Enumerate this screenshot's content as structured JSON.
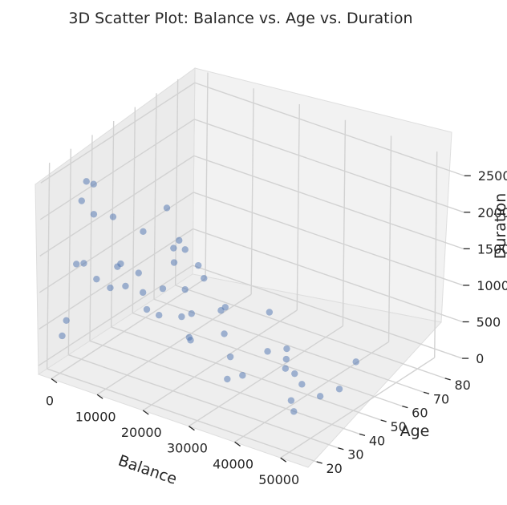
{
  "chart_data": {
    "type": "scatter",
    "projection": "3d",
    "title": "3D Scatter Plot: Balance vs. Age vs. Duration",
    "xlabel": "Balance",
    "ylabel": "Age",
    "zlabel": "Duration",
    "x_ticks": [
      "0",
      "10000",
      "20000",
      "30000",
      "40000",
      "50000"
    ],
    "y_ticks": [
      "20",
      "30",
      "40",
      "50",
      "60",
      "70",
      "80"
    ],
    "z_ticks": [
      "0",
      "500",
      "1000",
      "1500",
      "2000",
      "2500"
    ],
    "xlim": [
      -2800,
      56000
    ],
    "ylim": [
      16,
      88
    ],
    "zlim": [
      -120,
      2700
    ],
    "grid": true,
    "point_color": "#4c72b0",
    "point_alpha": 0.5,
    "series": [
      {
        "values": [
          [
            300,
            30,
            1200
          ],
          [
            500,
            34,
            1800
          ],
          [
            200,
            31,
            2300
          ],
          [
            800,
            35,
            900
          ],
          [
            1500,
            40,
            700
          ],
          [
            2500,
            45,
            650
          ],
          [
            4000,
            50,
            500
          ],
          [
            6000,
            55,
            500
          ],
          [
            1000,
            25,
            1300
          ],
          [
            600,
            28,
            2100
          ],
          [
            12000,
            22,
            1600
          ],
          [
            15000,
            24,
            1500
          ],
          [
            9000,
            27,
            1400
          ],
          [
            7000,
            29,
            2000
          ],
          [
            5000,
            24,
            2500
          ],
          [
            20000,
            23,
            1050
          ],
          [
            26000,
            25,
            800
          ],
          [
            22000,
            33,
            600
          ],
          [
            18000,
            38,
            700
          ],
          [
            35000,
            23,
            500
          ],
          [
            50000,
            22,
            400
          ],
          [
            48000,
            25,
            450
          ],
          [
            30000,
            41,
            100
          ],
          [
            25000,
            46,
            150
          ],
          [
            10000,
            60,
            150
          ],
          [
            3000,
            72,
            100
          ],
          [
            8000,
            70,
            400
          ],
          [
            15000,
            65,
            250
          ],
          [
            42000,
            43,
            200
          ],
          [
            37000,
            46,
            250
          ],
          [
            45000,
            33,
            600
          ],
          [
            52000,
            30,
            500
          ],
          [
            46000,
            52,
            50
          ],
          [
            33000,
            55,
            120
          ],
          [
            28000,
            57,
            80
          ],
          [
            44000,
            64,
            150
          ],
          [
            20000,
            75,
            100
          ],
          [
            1200,
            82,
            200
          ],
          [
            40000,
            40,
            700
          ],
          [
            31000,
            30,
            900
          ],
          [
            27000,
            37,
            1000
          ],
          [
            13000,
            45,
            1200
          ],
          [
            5000,
            62,
            900
          ],
          [
            2500,
            70,
            800
          ],
          [
            600,
            77,
            500
          ],
          [
            400,
            20,
            400
          ],
          [
            800,
            21,
            600
          ],
          [
            200,
            58,
            1100
          ],
          [
            1600,
            66,
            1300
          ],
          [
            3500,
            53,
            200
          ]
        ]
      }
    ]
  }
}
